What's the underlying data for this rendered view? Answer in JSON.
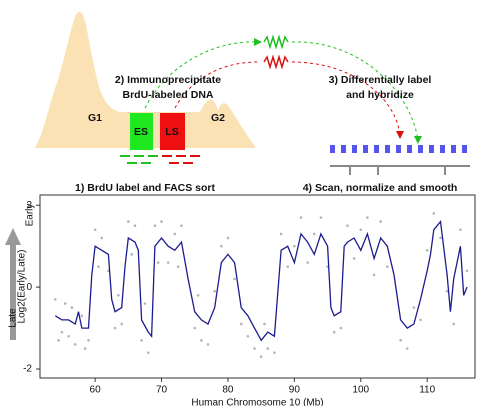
{
  "diagram": {
    "step1": "1) BrdU label and FACS sort",
    "step2": [
      "2) Immunoprecipitate",
      "BrdU-labeled DNA"
    ],
    "step3": [
      "3) Differentially label",
      "and hybridize"
    ],
    "step4": "4) Scan, normalize and smooth",
    "g1": "G1",
    "g2": "G2",
    "es": "ES",
    "ls": "LS"
  },
  "chart_data": {
    "type": "line",
    "x_label": "Human Chromosome 10 (Mb)",
    "y_label": "Log2(Early/Late)",
    "annotations": [
      "Late",
      "Early"
    ],
    "xlim": [
      51.7,
      117.2
    ],
    "xticks": [
      60,
      70,
      80,
      90,
      100,
      110
    ],
    "ylim": [
      -2.22,
      2.25
    ],
    "yticks": [
      -2,
      0,
      2
    ],
    "series": [
      {
        "type": "line",
        "color": "#1c1c8f",
        "x": [
          54,
          55,
          56,
          57,
          57.5,
          58,
          59,
          59.5,
          60,
          61,
          62,
          62.5,
          63,
          64,
          64.5,
          65,
          66,
          66.5,
          67,
          68,
          68.5,
          69,
          70,
          71,
          72,
          73,
          74,
          75,
          76,
          77,
          78,
          79,
          80,
          81,
          82,
          83,
          84,
          85,
          86,
          87,
          88,
          89,
          90,
          91,
          92,
          93,
          94,
          95,
          95.5,
          96,
          97,
          97.5,
          98,
          99,
          100,
          101,
          102,
          103,
          104,
          105,
          106,
          107,
          108,
          109,
          110,
          110.5,
          111,
          112,
          113,
          113.5,
          114,
          115,
          115.5,
          116
        ],
        "values": [
          -0.7,
          -0.8,
          -0.8,
          -0.9,
          -0.6,
          -1.0,
          -1.0,
          0.3,
          1.0,
          0.9,
          0.8,
          -0.3,
          -0.6,
          -0.5,
          0.5,
          1.2,
          1.1,
          0.9,
          -0.8,
          -1.1,
          -1.2,
          1.0,
          1.2,
          1.0,
          0.9,
          1.1,
          0.2,
          -0.6,
          -0.8,
          -0.9,
          -0.5,
          0.6,
          0.8,
          0.6,
          -0.5,
          -0.7,
          -1.0,
          -1.3,
          -1.1,
          -1.2,
          0.9,
          1.0,
          0.6,
          1.3,
          1.1,
          0.8,
          1.3,
          1.0,
          -0.5,
          -0.7,
          -0.6,
          1.0,
          1.1,
          1.2,
          0.9,
          1.3,
          0.7,
          1.2,
          1.0,
          0.3,
          -0.8,
          -1.0,
          -0.9,
          -0.3,
          0.4,
          0.8,
          1.4,
          1.6,
          0.3,
          -0.6,
          0.2,
          1.0,
          -0.2,
          0.0
        ]
      },
      {
        "type": "scatter",
        "color": "#b4b4b4",
        "x": [
          54,
          54.5,
          55,
          55.5,
          56,
          56.5,
          57,
          58,
          58.5,
          59,
          60,
          60.5,
          61,
          62,
          63,
          63.5,
          64,
          65,
          65.5,
          66,
          67,
          67.5,
          68,
          69,
          69.5,
          70,
          71,
          72,
          72.5,
          73,
          75,
          75.5,
          76,
          77,
          78,
          79,
          80,
          81,
          82,
          83,
          84,
          85,
          85.5,
          86,
          87,
          88,
          89,
          90,
          91,
          92,
          93,
          94,
          95,
          96,
          97,
          98,
          99,
          100,
          101,
          102,
          103,
          104,
          106,
          107,
          108,
          109,
          110,
          111,
          112,
          113,
          114,
          115,
          116
        ],
        "values": [
          -0.3,
          -1.3,
          -1.1,
          -0.4,
          -1.2,
          -0.5,
          -1.4,
          -0.7,
          -1.5,
          -1.3,
          1.4,
          0.5,
          1.2,
          0.4,
          -1.0,
          -0.2,
          -0.9,
          1.6,
          0.8,
          1.5,
          -1.3,
          -0.4,
          -1.6,
          1.5,
          0.6,
          1.6,
          0.6,
          1.3,
          0.5,
          1.5,
          -1.0,
          -0.2,
          -1.3,
          -1.4,
          -0.1,
          1.0,
          1.2,
          0.2,
          -0.9,
          -1.2,
          -1.5,
          -1.7,
          -0.9,
          -1.5,
          -1.6,
          1.3,
          0.5,
          1.0,
          1.7,
          0.6,
          1.3,
          1.7,
          0.5,
          -1.1,
          -1.0,
          1.5,
          0.7,
          1.4,
          1.7,
          0.3,
          1.6,
          0.5,
          -1.3,
          -1.5,
          -0.5,
          -0.8,
          0.9,
          1.8,
          1.2,
          -0.1,
          -0.9,
          1.4,
          0.4
        ]
      }
    ]
  }
}
